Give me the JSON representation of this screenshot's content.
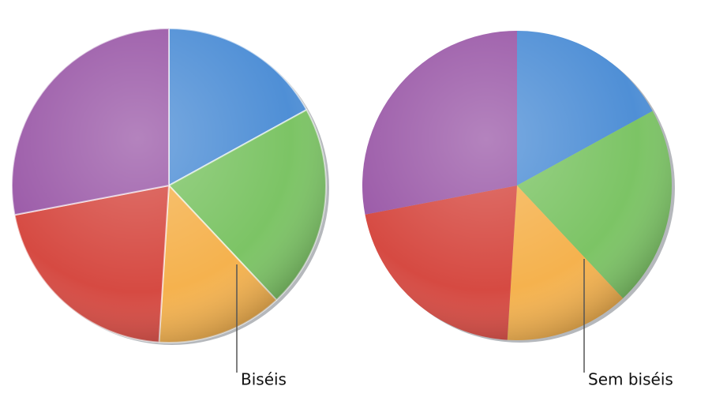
{
  "chart_data": [
    {
      "type": "pie",
      "values": [
        17,
        21,
        13,
        21,
        28
      ],
      "colors": [
        "#4f8fd6",
        "#7cc465",
        "#f5b24e",
        "#d64a42",
        "#9b5aa8"
      ],
      "bevel": true,
      "annotation": "Biséis"
    },
    {
      "type": "pie",
      "values": [
        17,
        21,
        13,
        21,
        28
      ],
      "colors": [
        "#4f8fd6",
        "#7cc465",
        "#f5b24e",
        "#d64a42",
        "#9b5aa8"
      ],
      "bevel": false,
      "annotation": "Sem biséis"
    }
  ]
}
